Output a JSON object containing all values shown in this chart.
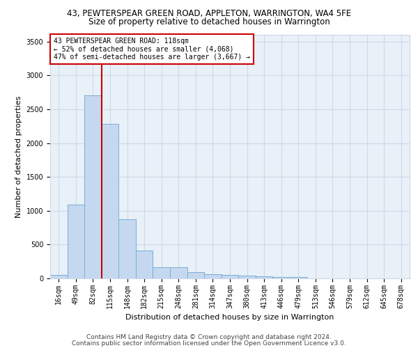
{
  "title1": "43, PEWTERSPEAR GREEN ROAD, APPLETON, WARRINGTON, WA4 5FE",
  "title2": "Size of property relative to detached houses in Warrington",
  "xlabel": "Distribution of detached houses by size in Warrington",
  "ylabel": "Number of detached properties",
  "categories": [
    "16sqm",
    "49sqm",
    "82sqm",
    "115sqm",
    "148sqm",
    "182sqm",
    "215sqm",
    "248sqm",
    "281sqm",
    "314sqm",
    "347sqm",
    "380sqm",
    "413sqm",
    "446sqm",
    "479sqm",
    "513sqm",
    "546sqm",
    "579sqm",
    "612sqm",
    "645sqm",
    "678sqm"
  ],
  "values": [
    55,
    1090,
    2710,
    2280,
    875,
    415,
    165,
    165,
    90,
    65,
    55,
    45,
    30,
    20,
    20,
    0,
    0,
    0,
    0,
    0,
    0
  ],
  "bar_color": "#c5d8f0",
  "bar_edge_color": "#7aadd4",
  "property_line_color": "#cc0000",
  "annotation_text": "43 PEWTERSPEAR GREEN ROAD: 118sqm\n← 52% of detached houses are smaller (4,068)\n47% of semi-detached houses are larger (3,667) →",
  "annotation_box_color": "#ffffff",
  "annotation_box_edge": "#cc0000",
  "ylim": [
    0,
    3600
  ],
  "yticks": [
    0,
    500,
    1000,
    1500,
    2000,
    2500,
    3000,
    3500
  ],
  "grid_color": "#d0d8e8",
  "bg_color": "#e8f0f8",
  "footer1": "Contains HM Land Registry data © Crown copyright and database right 2024.",
  "footer2": "Contains public sector information licensed under the Open Government Licence v3.0.",
  "title1_fontsize": 8.5,
  "title2_fontsize": 8.5,
  "xlabel_fontsize": 8,
  "ylabel_fontsize": 8,
  "tick_fontsize": 7,
  "annotation_fontsize": 7,
  "footer_fontsize": 6.5
}
